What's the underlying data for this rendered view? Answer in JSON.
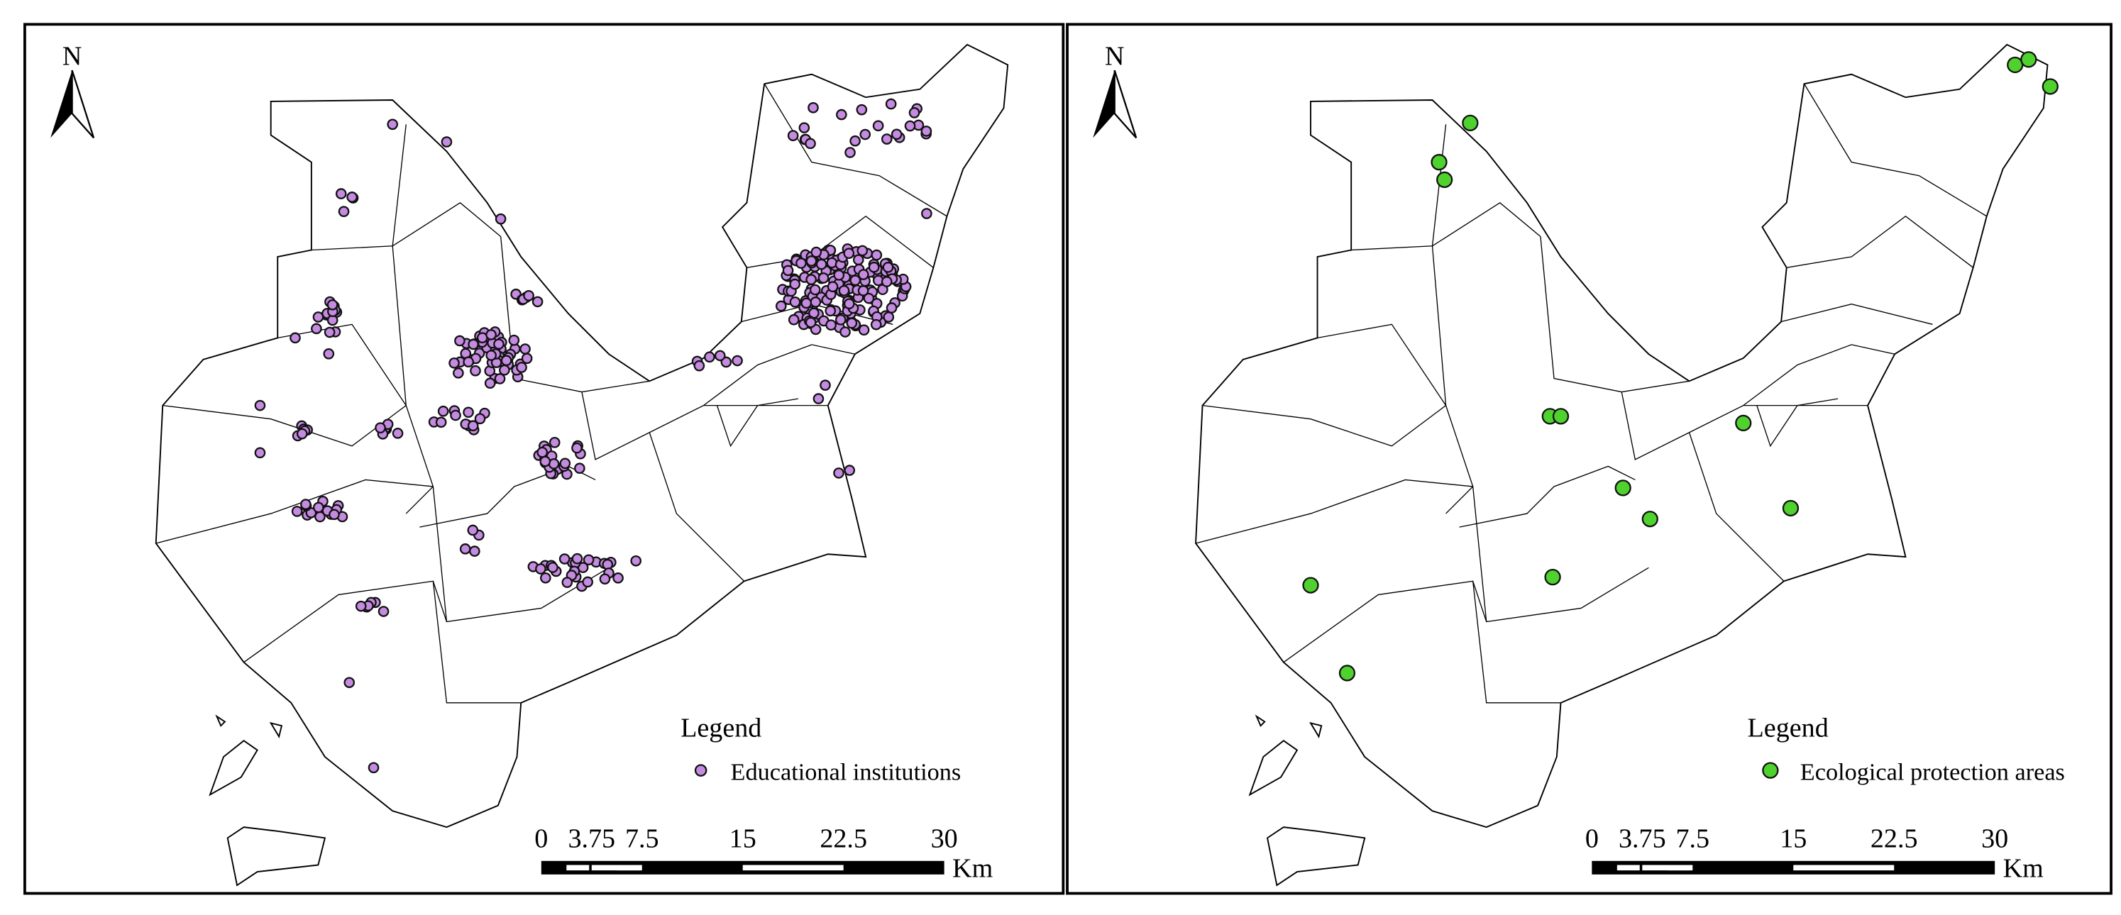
{
  "panels": [
    {
      "north": "N",
      "legend": {
        "title": "Legend",
        "label": "Educational institutions"
      },
      "scale_bar": {
        "ticks": [
          0,
          3.75,
          7.5,
          15,
          22.5,
          30
        ],
        "unit": "Km"
      }
    },
    {
      "north": "N",
      "legend": {
        "title": "Legend",
        "label": "Ecological protection areas"
      },
      "scale_bar": {
        "ticks": [
          0,
          3.75,
          7.5,
          15,
          22.5,
          30
        ],
        "unit": "Km"
      }
    }
  ]
}
